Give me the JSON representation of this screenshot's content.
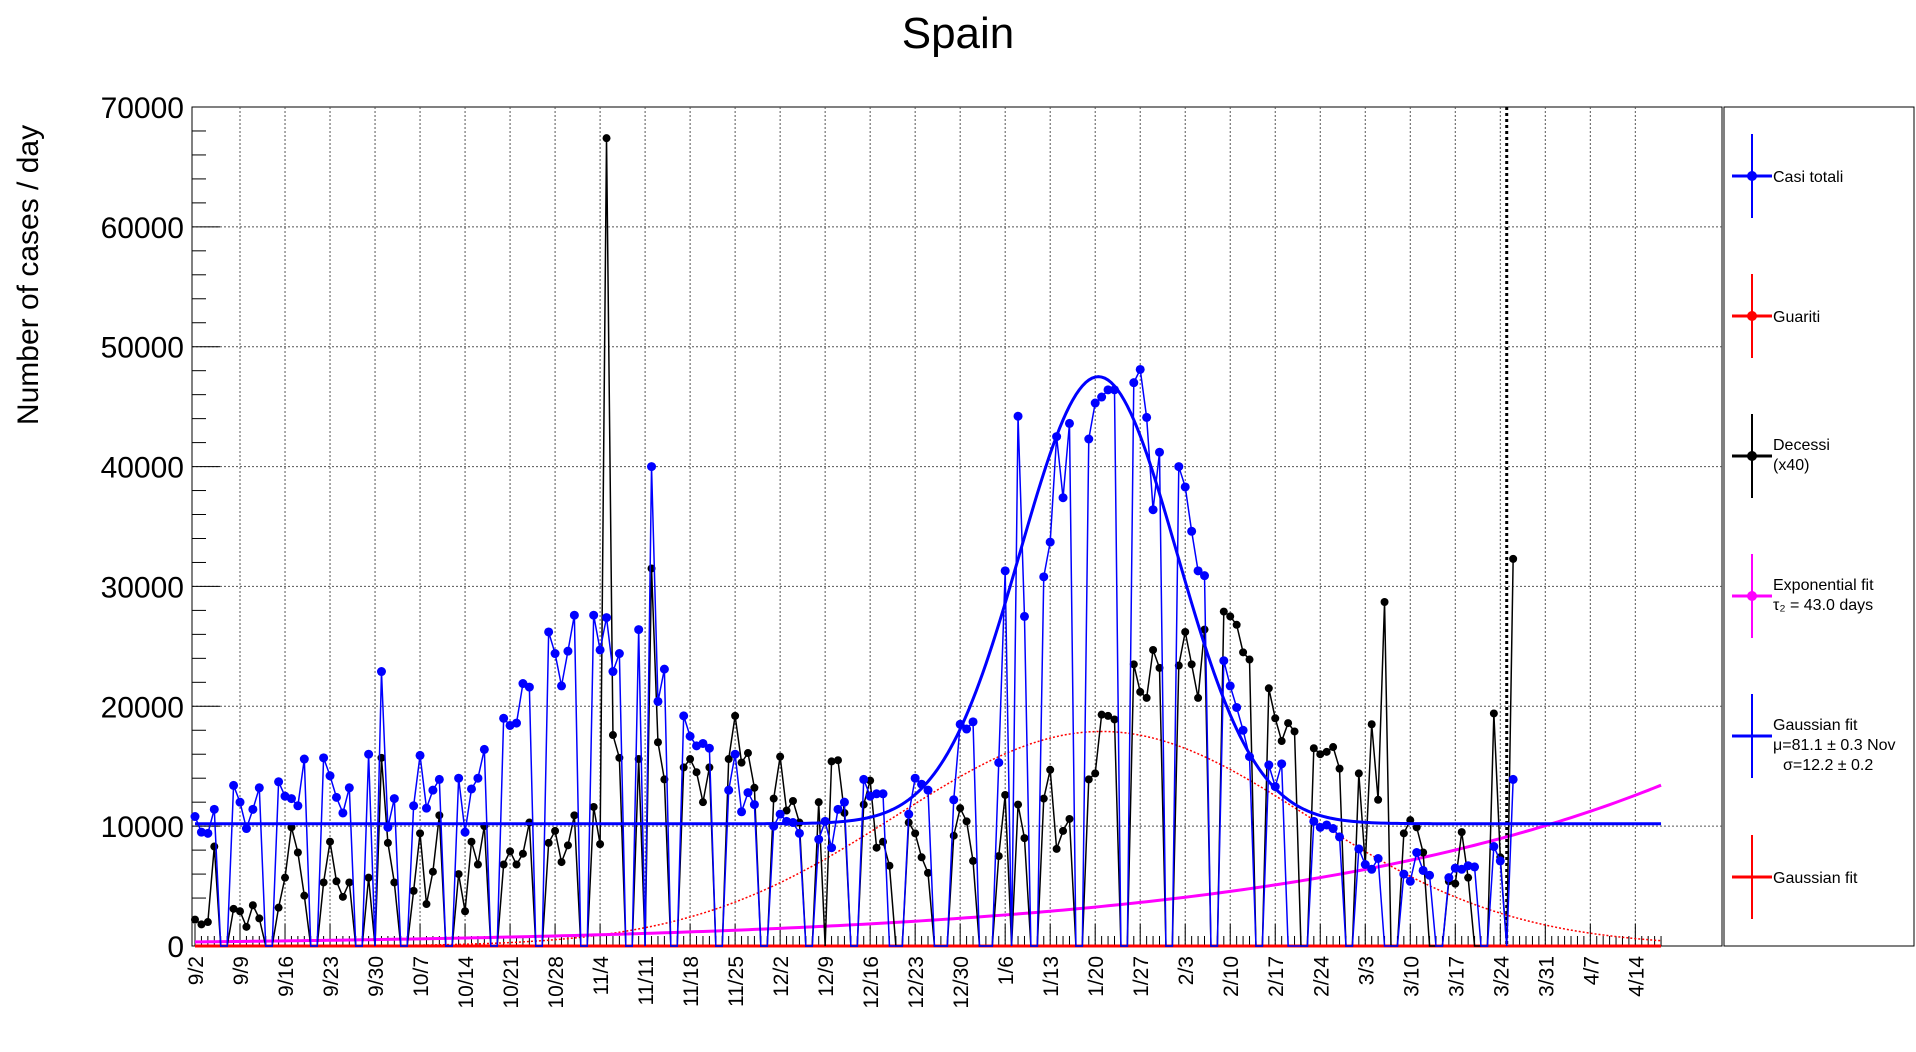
{
  "chart_data": {
    "type": "line",
    "title": "Spain",
    "ylabel": "Number of cases / day",
    "xlabel": "",
    "ylim": [
      0,
      70000
    ],
    "x_start": "9/2",
    "x_end": "4/14",
    "grid": true,
    "legend_position": "right",
    "yticks": [
      0,
      10000,
      20000,
      30000,
      40000,
      50000,
      60000,
      70000
    ],
    "xtick_labels": [
      "9/2",
      "9/9",
      "9/16",
      "9/23",
      "9/30",
      "10/7",
      "10/14",
      "10/21",
      "10/28",
      "11/4",
      "11/11",
      "11/18",
      "11/25",
      "12/2",
      "12/9",
      "12/16",
      "12/23",
      "12/30",
      "1/6",
      "1/13",
      "1/20",
      "1/27",
      "2/3",
      "2/10",
      "2/17",
      "2/24",
      "3/3",
      "3/10",
      "3/17",
      "3/24",
      "3/31",
      "4/7",
      "4/14"
    ],
    "vertical_marker_date": "3/25",
    "legend": [
      {
        "name": "Casi totali",
        "color": "#0000ff"
      },
      {
        "name": "Guariti",
        "color": "#ff0000"
      },
      {
        "name": "Decessi",
        "sub": "(x40)",
        "color": "#000000"
      },
      {
        "name": "Exponential fit",
        "sub": "τ₂ = 43.0 days",
        "color": "#ff00ff"
      },
      {
        "name": "Gaussian fit",
        "sub": "μ=81.1 ± 0.3 Nov",
        "sub2": "σ=12.2 ± 0.2",
        "color": "#0000ff"
      },
      {
        "name": "Gaussian fit",
        "color": "#ff0000"
      }
    ],
    "series": [
      {
        "name": "Casi totali",
        "color": "#0000ff",
        "x_day_start": 0,
        "values": [
          10800,
          9500,
          9400,
          11400,
          0,
          0,
          13400,
          12000,
          9800,
          11400,
          13200,
          0,
          0,
          13700,
          12500,
          12300,
          11700,
          15600,
          0,
          0,
          15700,
          14200,
          12400,
          11100,
          13200,
          0,
          0,
          16000,
          0,
          22900,
          9900,
          12300,
          0,
          0,
          11700,
          15900,
          11500,
          13000,
          13900,
          0,
          0,
          14000,
          9500,
          13100,
          14000,
          16400,
          0,
          0,
          19000,
          18400,
          18600,
          21900,
          21600,
          0,
          0,
          26200,
          24400,
          21700,
          24600,
          27600,
          0,
          0,
          27600,
          24700,
          27400,
          22900,
          24400,
          0,
          0,
          26400,
          0,
          40000,
          20400,
          23100,
          0,
          0,
          19200,
          17500,
          16700,
          16900,
          16500,
          0,
          0,
          13000,
          16000,
          11200,
          12800,
          11800,
          0,
          0,
          10000,
          11000,
          10400,
          10300,
          9400,
          0,
          0,
          8900,
          10400,
          8200,
          11400,
          12000,
          0,
          0,
          13900,
          12500,
          12700,
          12700,
          0,
          0,
          0,
          11000,
          14000,
          13500,
          13000,
          0,
          0,
          0,
          12200,
          18500,
          18100,
          18700,
          0,
          0,
          0,
          15300,
          31300,
          0,
          44200,
          27500,
          0,
          0,
          30800,
          33700,
          42500,
          37400,
          43600,
          0,
          0,
          42300,
          45300,
          45800,
          46400,
          46400,
          0,
          0,
          47000,
          48100,
          44100,
          36400,
          41200,
          0,
          0,
          40000,
          38300,
          34600,
          31300,
          30900,
          0,
          0,
          23800,
          21700,
          19900,
          18000,
          15800,
          0,
          0,
          15100,
          13300,
          15200,
          0,
          0,
          0,
          0,
          10400,
          9900,
          10100,
          9800,
          9100,
          0,
          0,
          8100,
          6800,
          6400,
          7300,
          0,
          0,
          0,
          6000,
          5400,
          7800,
          6300,
          5900,
          0,
          0,
          5700,
          6500,
          6400,
          6700,
          6600,
          0,
          0,
          8300,
          7100,
          0,
          13900
        ]
      },
      {
        "name": "Decessi",
        "color": "#000000",
        "x_day_start": 0,
        "values": [
          2200,
          1800,
          2000,
          8300,
          0,
          0,
          3100,
          2900,
          1600,
          3400,
          2300,
          0,
          0,
          3200,
          5700,
          9900,
          7800,
          4200,
          0,
          0,
          5300,
          8700,
          5400,
          4100,
          5300,
          0,
          0,
          5700,
          0,
          15700,
          8600,
          5300,
          0,
          0,
          4600,
          9400,
          3500,
          6200,
          10900,
          0,
          0,
          6000,
          2900,
          8700,
          6800,
          10000,
          0,
          0,
          6800,
          7900,
          6800,
          7700,
          10300,
          0,
          0,
          8600,
          9600,
          7000,
          8400,
          10900,
          0,
          0,
          11600,
          8500,
          67400,
          17600,
          15700,
          0,
          0,
          15600,
          0,
          31500,
          17000,
          13900,
          0,
          0,
          14900,
          15600,
          14500,
          12000,
          14900,
          0,
          0,
          15600,
          19200,
          15300,
          16100,
          13200,
          0,
          0,
          12300,
          15800,
          11300,
          12100,
          10300,
          0,
          0,
          12000,
          0,
          15400,
          15500,
          11100,
          0,
          0,
          11800,
          13800,
          8200,
          8700,
          6700,
          0,
          0,
          10300,
          9400,
          7400,
          6100,
          0,
          0,
          0,
          9200,
          11500,
          10400,
          7100,
          0,
          0,
          0,
          7500,
          12600,
          0,
          11800,
          9000,
          0,
          0,
          12300,
          14700,
          8100,
          9600,
          10600,
          0,
          0,
          13900,
          14400,
          19300,
          19200,
          18900,
          0,
          0,
          23500,
          21200,
          20700,
          24700,
          23200,
          0,
          0,
          23400,
          26200,
          23500,
          20700,
          26400,
          0,
          0,
          27900,
          27500,
          26800,
          24500,
          23900,
          0,
          0,
          21500,
          19000,
          17100,
          18600,
          17900,
          0,
          0,
          16500,
          16000,
          16200,
          16600,
          14800,
          0,
          0,
          14400,
          6800,
          18500,
          12200,
          28700,
          0,
          0,
          9400,
          10500,
          9900,
          7800,
          0,
          0,
          0,
          5400,
          5200,
          9500,
          5700,
          0,
          0,
          0,
          19400,
          7400,
          0,
          32300
        ]
      },
      {
        "name": "Gaussian fit (Casi totali)",
        "color": "#0000ff",
        "baseline": 10200,
        "amplitude": 37300,
        "mu_day": 140.5,
        "sigma_days": 12.2,
        "x_day_range": [
          0,
          228
        ]
      },
      {
        "name": "Exponential fit",
        "color": "#ff00ff",
        "amplitude": 340,
        "tau_days": 43.0,
        "x_day_range": [
          0,
          228
        ]
      },
      {
        "name": "Gaussian fit (Guariti)",
        "color": "#ff0000",
        "style": "dotted",
        "amplitude": 17900,
        "mu_day": 141,
        "sigma_days": 32,
        "x_day_range": [
          0,
          228
        ]
      },
      {
        "name": "Guariti",
        "color": "#ff0000",
        "values_constant": 0,
        "x_day_range": [
          0,
          228
        ]
      }
    ]
  }
}
